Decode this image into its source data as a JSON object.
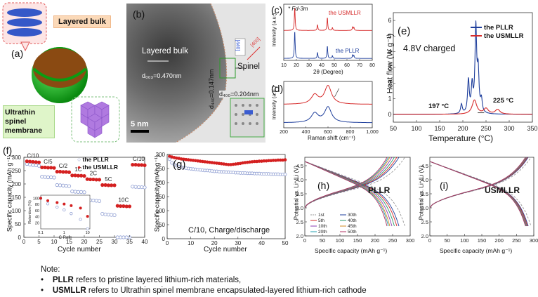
{
  "panel_a": {
    "label": "(a)",
    "tag1": "Layered bulk",
    "tag2_line1": "Ultrathin",
    "tag2_line2": "spinel",
    "tag2_line3": "membrane",
    "colors": {
      "orange_tag": "#fbd9b8",
      "green_tag": "#dff5c9",
      "sphere_green": "#16c21a",
      "sphere_core": "#8a4a12"
    }
  },
  "panel_b": {
    "label": "(b)",
    "layered": "Layered bulk",
    "d003": "d₀₀₃=0.470nm",
    "spinel": "Spinel",
    "d400": "d₄₀₀=0.204nm",
    "d440": "d₄₄₀=0.147nm",
    "scale": "5 nm",
    "fft_400": "[400]",
    "fft_440": "[440]"
  },
  "panel_c": {
    "label": "(c)",
    "spacegroup": "* Fd-3m",
    "s1": "the USMLLR",
    "s2": "the PLLR",
    "ylabel": "Intensity (a.u.)",
    "xlabel": "2θ (Degree)",
    "xticks": [
      "10",
      "20",
      "30",
      "40",
      "50",
      "60",
      "70",
      "80"
    ]
  },
  "panel_d": {
    "label": "(d)",
    "ylabel": "Intensity (a.u.)",
    "xlabel": "Raman shift (cm⁻¹)",
    "xticks": [
      "200",
      "400",
      "600",
      "800",
      "1,000"
    ]
  },
  "panel_e": {
    "label": "(e)",
    "ylabel": "Heat flow (W g⁻¹)",
    "xlabel": "Temperature (°C)",
    "legend1": "the PLLR",
    "legend2": "the USMLLR",
    "note": "4.8V charged",
    "peak1": "197 °C",
    "peak2": "225 °C",
    "xticks": [
      "50",
      "100",
      "150",
      "200",
      "250",
      "300",
      "350"
    ],
    "yticks": [
      "0",
      "1",
      "2",
      "3",
      "4",
      "5",
      "6"
    ]
  },
  "panel_f": {
    "label": "(f)",
    "ylabel": "Specific capacity (mAh g⁻¹)",
    "xlabel": "Cycle number",
    "legend1": "the PLLR",
    "legend2": "the USMLLR",
    "rates": [
      "C/10",
      "C/5",
      "C/2",
      "1C",
      "2C",
      "5C",
      "10C",
      "C/10"
    ],
    "xticks": [
      "0",
      "5",
      "10",
      "15",
      "20",
      "25",
      "30",
      "35",
      "40"
    ],
    "yticks": [
      "0",
      "50",
      "100",
      "150",
      "200",
      "250",
      "300"
    ],
    "inset_ylabel": "Retention (%)",
    "inset_xlabel": "C Rate",
    "inset_yticks": [
      "20",
      "40",
      "60",
      "80",
      "100"
    ],
    "inset_xticks": [
      "0.1",
      "1",
      "10"
    ]
  },
  "panel_g": {
    "label": "(g)",
    "ylabel": "Specific capacity (mAh g⁻¹)",
    "xlabel": "Cycle number",
    "note": "C/10, Charge/discharge",
    "xticks": [
      "0",
      "10",
      "20",
      "30",
      "40",
      "50"
    ],
    "yticks": [
      "0",
      "50",
      "100",
      "150",
      "200",
      "250",
      "300"
    ]
  },
  "panel_h": {
    "label": "(h)",
    "name": "PLLR",
    "ylabel": "Potential vs. Li⁺/Li (V)",
    "xlabel": "Specific capacity (mAh g⁻¹)",
    "legend": [
      "1st",
      "5th",
      "10th",
      "20th",
      "30th",
      "40th",
      "45th",
      "50th"
    ],
    "xticks": [
      "0",
      "50",
      "100",
      "150",
      "200",
      "250",
      "300"
    ],
    "yticks": [
      "2.0",
      "2.5",
      "3.0",
      "3.5",
      "4.0",
      "4.5"
    ]
  },
  "panel_i": {
    "label": "(i)",
    "name": "USMLLR",
    "ylabel": "Potential vs. Li⁺/Li (V)",
    "xlabel": "Specific capacity (mAh g⁻¹)",
    "xticks": [
      "0",
      "50",
      "100",
      "150",
      "200",
      "250",
      "300"
    ],
    "yticks": [
      "2.0",
      "2.5",
      "3.0",
      "3.5",
      "4.0",
      "4.5"
    ]
  },
  "notes": {
    "title": "Note:",
    "b1_bold": "PLLR",
    "b1_text": " refers to pristine layered lithium-rich materials,",
    "b2_bold": "USMLLR",
    "b2_text": " refers to Ultrathin spinel membrane encapsulated-layered lithium-rich cathode"
  },
  "chart_data": [
    {
      "type": "line",
      "panel": "c",
      "title": "",
      "xlabel": "2θ (Degree)",
      "ylabel": "Intensity (a.u.)",
      "xlim": [
        10,
        80
      ],
      "series": [
        {
          "name": "the USMLLR",
          "color": "#d62a2a",
          "peaks": [
            [
              18.7,
              1.0
            ],
            [
              36.7,
              0.25
            ],
            [
              44.5,
              0.55
            ],
            [
              48.5,
              0.12
            ],
            [
              64.5,
              0.15
            ],
            [
              65.5,
              0.12
            ]
          ]
        },
        {
          "name": "the PLLR",
          "color": "#1f3f9c",
          "peaks": [
            [
              18.7,
              1.0
            ],
            [
              36.7,
              0.22
            ],
            [
              44.5,
              0.45
            ],
            [
              48.5,
              0.1
            ],
            [
              64.5,
              0.13
            ],
            [
              65.5,
              0.1
            ]
          ]
        }
      ]
    },
    {
      "type": "line",
      "panel": "d",
      "xlabel": "Raman shift (cm⁻¹)",
      "ylabel": "Intensity (a.u.)",
      "xlim": [
        200,
        1000
      ],
      "series": [
        {
          "name": "the USMLLR",
          "color": "#d62a2a",
          "peaks": [
            [
              480,
              0.5
            ],
            [
              600,
              1.0
            ]
          ]
        },
        {
          "name": "the PLLR",
          "color": "#1f3f9c",
          "peaks": [
            [
              480,
              0.6
            ],
            [
              600,
              1.0
            ]
          ]
        }
      ]
    },
    {
      "type": "line",
      "panel": "e",
      "xlabel": "Temperature (°C)",
      "ylabel": "Heat flow (W g⁻¹)",
      "xlim": [
        50,
        350
      ],
      "ylim": [
        -0.5,
        6.5
      ],
      "series": [
        {
          "name": "the PLLR",
          "color": "#1f3f9c",
          "peaks": [
            [
              197,
              0.6
            ],
            [
              212,
              2.1
            ],
            [
              220,
              1.7
            ],
            [
              228,
              5.4
            ],
            [
              233,
              2.5
            ],
            [
              240,
              0.8
            ]
          ]
        },
        {
          "name": "the USMLLR",
          "color": "#d62a2a",
          "peaks": [
            [
              225,
              0.9
            ],
            [
              250,
              0.35
            ],
            [
              275,
              0.3
            ]
          ]
        }
      ]
    },
    {
      "type": "scatter",
      "panel": "f",
      "xlabel": "Cycle number",
      "ylabel": "Specific capacity (mAh g⁻¹)",
      "xlim": [
        0,
        40
      ],
      "ylim": [
        0,
        300
      ],
      "series": [
        {
          "name": "the PLLR",
          "color": "#8a9ad0",
          "values": [
            275,
            273,
            271,
            270,
            268,
            227,
            226,
            225,
            225,
            224,
            196,
            195,
            194,
            193,
            192,
            172,
            171,
            170,
            170,
            169,
            140,
            139,
            138,
            137,
            136,
            88,
            86,
            85,
            84,
            83,
            0,
            0,
            0,
            0,
            0,
            190,
            189,
            188,
            188,
            187
          ]
        },
        {
          "name": "the USMLLR",
          "color": "#d42020",
          "values": [
            285,
            284,
            283,
            282,
            281,
            262,
            262,
            261,
            261,
            260,
            246,
            246,
            245,
            245,
            244,
            232,
            232,
            231,
            231,
            230,
            218,
            217,
            217,
            216,
            216,
            196,
            196,
            195,
            195,
            195,
            118,
            117,
            117,
            116,
            116,
            272,
            272,
            271,
            271,
            270
          ]
        }
      ],
      "inset": {
        "xlabel": "C Rate",
        "ylabel": "Retention (%)",
        "x": [
          0.1,
          0.2,
          0.5,
          1,
          2,
          5,
          10
        ],
        "PLLR": [
          100,
          82,
          71,
          62,
          50,
          31,
          0
        ],
        "USMLLR": [
          100,
          92,
          86,
          81,
          76,
          68,
          41
        ]
      }
    },
    {
      "type": "scatter",
      "panel": "g",
      "xlabel": "Cycle number",
      "ylabel": "Specific capacity (mAh g⁻¹)",
      "xlim": [
        0,
        50
      ],
      "ylim": [
        0,
        300
      ],
      "series": [
        {
          "name": "the USMLLR",
          "color": "#d42020",
          "values": [
            293,
            291,
            289,
            287,
            286,
            284,
            283,
            282,
            281,
            280,
            279,
            278,
            277,
            276,
            275,
            274,
            273,
            272,
            271,
            270,
            269,
            268,
            267,
            266,
            265,
            264,
            264,
            265,
            266,
            267,
            268,
            270,
            271,
            272,
            273,
            274,
            275,
            275,
            276,
            276,
            277,
            277,
            278,
            278,
            279,
            279,
            280,
            280,
            280,
            281
          ]
        },
        {
          "name": "the PLLR",
          "color": "#8a9ad0",
          "values": [
            283,
            270,
            264,
            260,
            257,
            255,
            253,
            251,
            250,
            249,
            248,
            247,
            246,
            245,
            244,
            243,
            243,
            242,
            241,
            240,
            240,
            239,
            238,
            238,
            237,
            237,
            236,
            236,
            235,
            235,
            234,
            234,
            234,
            233,
            233,
            233,
            232,
            232,
            232,
            231,
            231,
            231,
            231,
            230,
            230,
            230,
            230,
            229,
            229,
            229
          ]
        }
      ]
    },
    {
      "type": "line",
      "panel": "h",
      "xlabel": "Specific capacity (mAh g⁻¹)",
      "ylabel": "Potential vs. Li⁺/Li (V)",
      "xlim": [
        0,
        300
      ],
      "ylim": [
        2.0,
        4.8
      ],
      "series": [
        {
          "name": "1st",
          "capacity": 285
        },
        {
          "name": "5th",
          "capacity": 268
        },
        {
          "name": "10th",
          "capacity": 262
        },
        {
          "name": "20th",
          "capacity": 255
        },
        {
          "name": "30th",
          "capacity": 248
        },
        {
          "name": "40th",
          "capacity": 242
        },
        {
          "name": "45th",
          "capacity": 238
        },
        {
          "name": "50th",
          "capacity": 234
        }
      ]
    },
    {
      "type": "line",
      "panel": "i",
      "xlabel": "Specific capacity (mAh g⁻¹)",
      "ylabel": "Potential vs. Li⁺/Li (V)",
      "xlim": [
        0,
        300
      ],
      "ylim": [
        2.0,
        4.8
      ],
      "series": [
        {
          "name": "1st",
          "capacity": 292
        },
        {
          "name": "5th",
          "capacity": 284
        },
        {
          "name": "10th",
          "capacity": 282
        },
        {
          "name": "20th",
          "capacity": 280
        },
        {
          "name": "30th",
          "capacity": 279
        },
        {
          "name": "40th",
          "capacity": 278
        },
        {
          "name": "45th",
          "capacity": 277
        },
        {
          "name": "50th",
          "capacity": 276
        }
      ]
    }
  ]
}
